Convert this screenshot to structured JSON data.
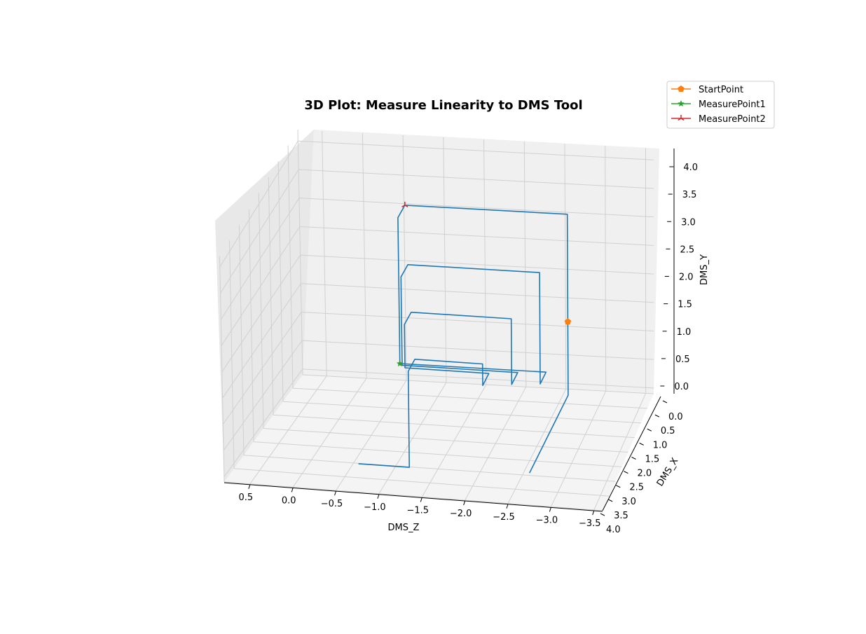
{
  "chart_data": {
    "type": "line3d",
    "title": "3D Plot: Measure Linearity to DMS Tool",
    "xlabel": "DMS_Z",
    "ylabel": "DMS_X",
    "zlabel": "DMS_Y",
    "z_ticks": [
      "0.5",
      "0.0",
      "−0.5",
      "−1.0",
      "−1.5",
      "−2.0",
      "−2.5",
      "−3.0",
      "−3.5"
    ],
    "x_ticks": [
      "0.0",
      "0.5",
      "1.0",
      "1.5",
      "2.0",
      "2.5",
      "3.0",
      "3.5",
      "4.0"
    ],
    "y_ticks": [
      "0.0",
      "0.5",
      "1.0",
      "1.5",
      "2.0",
      "2.5",
      "3.0",
      "3.5",
      "4.0"
    ],
    "z_range": [
      0.8,
      -3.6
    ],
    "x_range": [
      0.0,
      4.0
    ],
    "y_range": [
      -0.1,
      4.2
    ],
    "grid": true,
    "legend_placement": "top-right",
    "colors": {
      "trajectory": "#1f77b4",
      "start": "#ff7f0e",
      "measure1": "#2ca02c",
      "measure2": "#d62728"
    },
    "series": [
      {
        "type": "line",
        "points": [
          {
            "z": -2.6,
            "x": 3.1,
            "y": 0.0
          },
          {
            "z": -2.6,
            "x": 1.6,
            "y": 0.0
          },
          {
            "z": -2.6,
            "x": 0.4,
            "y": 0.0
          },
          {
            "z": -2.6,
            "x": 0.4,
            "y": 1.3
          },
          {
            "z": -2.6,
            "x": 0.4,
            "y": 3.2
          },
          {
            "z": -0.6,
            "x": 0.4,
            "y": 3.2
          },
          {
            "z": -0.6,
            "x": 0.8,
            "y": 3.2
          },
          {
            "z": -0.6,
            "x": 0.8,
            "y": 1.4
          },
          {
            "z": -0.6,
            "x": 0.8,
            "y": 0.6
          },
          {
            "z": -2.4,
            "x": 0.8,
            "y": 0.6
          },
          {
            "z": -2.4,
            "x": 1.2,
            "y": 0.6
          },
          {
            "z": -2.4,
            "x": 1.2,
            "y": 2.6
          },
          {
            "z": -0.8,
            "x": 1.2,
            "y": 2.6
          },
          {
            "z": -0.8,
            "x": 1.6,
            "y": 2.6
          },
          {
            "z": -0.8,
            "x": 1.6,
            "y": 1.6
          },
          {
            "z": -0.8,
            "x": 1.6,
            "y": 1.0
          },
          {
            "z": -2.2,
            "x": 1.6,
            "y": 1.0
          },
          {
            "z": -2.2,
            "x": 2.0,
            "y": 1.0
          },
          {
            "z": -2.2,
            "x": 2.0,
            "y": 2.2
          },
          {
            "z": -1.0,
            "x": 2.0,
            "y": 2.2
          },
          {
            "z": -1.0,
            "x": 2.4,
            "y": 2.2
          },
          {
            "z": -1.0,
            "x": 2.4,
            "y": 1.4
          },
          {
            "z": -2.0,
            "x": 2.4,
            "y": 1.4
          },
          {
            "z": -2.0,
            "x": 2.8,
            "y": 1.4
          },
          {
            "z": -2.0,
            "x": 2.8,
            "y": 1.8
          },
          {
            "z": -1.2,
            "x": 2.8,
            "y": 1.8
          },
          {
            "z": -1.2,
            "x": 3.2,
            "y": 1.8
          },
          {
            "z": -1.2,
            "x": 3.2,
            "y": 0.0
          },
          {
            "z": -0.6,
            "x": 3.2,
            "y": 0.0
          }
        ]
      },
      {
        "type": "marker",
        "name": "StartPoint",
        "marker": "pentagon",
        "point": {
          "z": -2.6,
          "x": 0.4,
          "y": 1.3
        }
      },
      {
        "type": "marker",
        "name": "MeasurePoint1",
        "marker": "star",
        "point": {
          "z": -0.6,
          "x": 0.8,
          "y": 0.6
        }
      },
      {
        "type": "marker",
        "name": "MeasurePoint2",
        "marker": "tri-star",
        "point": {
          "z": -0.6,
          "x": 0.4,
          "y": 3.2
        }
      }
    ],
    "legend": [
      {
        "name": "StartPoint",
        "marker": "pentagon"
      },
      {
        "name": "MeasurePoint1",
        "marker": "star"
      },
      {
        "name": "MeasurePoint2",
        "marker": "tri-star"
      }
    ]
  }
}
